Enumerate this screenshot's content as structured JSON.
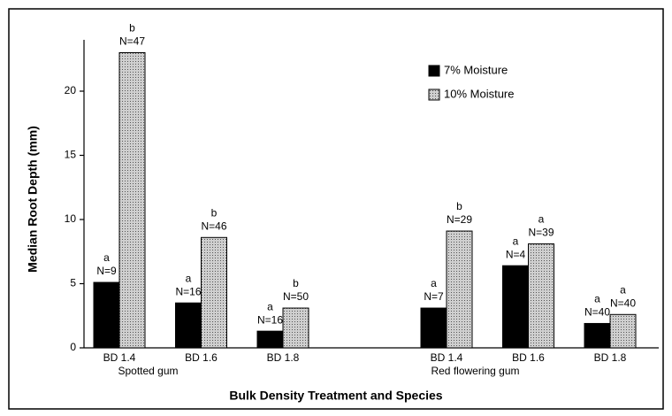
{
  "chart_data": {
    "type": "bar",
    "categories": [
      "BD 1.4",
      "BD 1.6",
      "BD 1.8",
      null,
      "BD 1.4",
      "BD 1.6",
      "BD 1.8"
    ],
    "groups": [
      {
        "label": "Spotted gum",
        "from": 0,
        "to": 2
      },
      {
        "label": "Red flowering gum",
        "from": 4,
        "to": 6
      }
    ],
    "series": [
      {
        "name": "7% Moisture",
        "color": "#000000",
        "values": [
          5.1,
          3.5,
          1.3,
          null,
          3.1,
          6.4,
          1.9
        ],
        "letters": [
          "a",
          "a",
          "a",
          null,
          "a",
          "a",
          "a"
        ],
        "n_labels": [
          "N=9",
          "N=16",
          "N=16",
          null,
          "N=7",
          "N=4",
          "N=40"
        ]
      },
      {
        "name": "10% Moisture",
        "color": "#a8a8a8",
        "values": [
          23,
          8.6,
          3.1,
          null,
          9.1,
          8.1,
          2.6
        ],
        "letters": [
          "b",
          "b",
          "b",
          null,
          "b",
          "a",
          "a"
        ],
        "n_labels": [
          "N=47",
          "N=46",
          "N=50",
          null,
          "N=29",
          "N=39",
          "N=40"
        ]
      }
    ],
    "x_label": "Bulk Density Treatment and Species",
    "y_label": "Median Root Depth (mm)",
    "ylim": [
      0,
      24
    ],
    "yticks": [
      0,
      5,
      10,
      15,
      20
    ],
    "grid": false,
    "legend": "upper right"
  }
}
